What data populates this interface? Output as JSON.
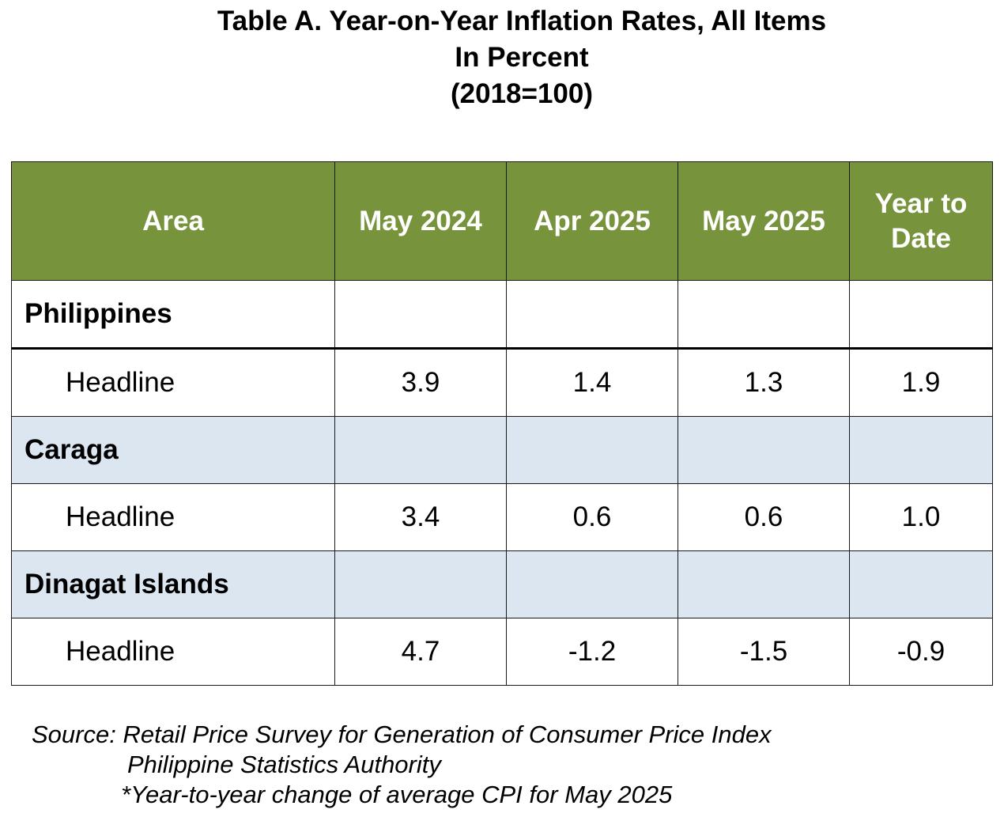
{
  "title": {
    "line1": "Table A. Year-on-Year Inflation Rates, All Items",
    "line2": "In Percent",
    "line3": "(2018=100)"
  },
  "table": {
    "headers": [
      "Area",
      "May 2024",
      "Apr 2025",
      "May 2025",
      "Year to Date"
    ],
    "rows": [
      {
        "label": "Philippines",
        "type": "area",
        "values": [
          "",
          "",
          "",
          ""
        ]
      },
      {
        "label": "Headline",
        "type": "headline",
        "values": [
          "3.9",
          "1.4",
          "1.3",
          "1.9"
        ]
      },
      {
        "label": "Caraga",
        "type": "area",
        "values": [
          "",
          "",
          "",
          ""
        ]
      },
      {
        "label": "Headline",
        "type": "headline",
        "values": [
          "3.4",
          "0.6",
          "0.6",
          "1.0"
        ]
      },
      {
        "label": "Dinagat Islands",
        "type": "area",
        "values": [
          "",
          "",
          "",
          ""
        ]
      },
      {
        "label": "Headline",
        "type": "headline",
        "values": [
          "4.7",
          "-1.2",
          "-1.5",
          "-0.9"
        ]
      }
    ]
  },
  "footnote": {
    "line1": "Source: Retail Price Survey for Generation of Consumer Price Index",
    "line2": "Philippine Statistics Authority",
    "line3": "*Year-to-year change of average CPI for May 2025"
  },
  "colors": {
    "header_bg": "#77933c",
    "header_text": "#ffffff",
    "shaded_row_bg": "#dce6f1"
  }
}
